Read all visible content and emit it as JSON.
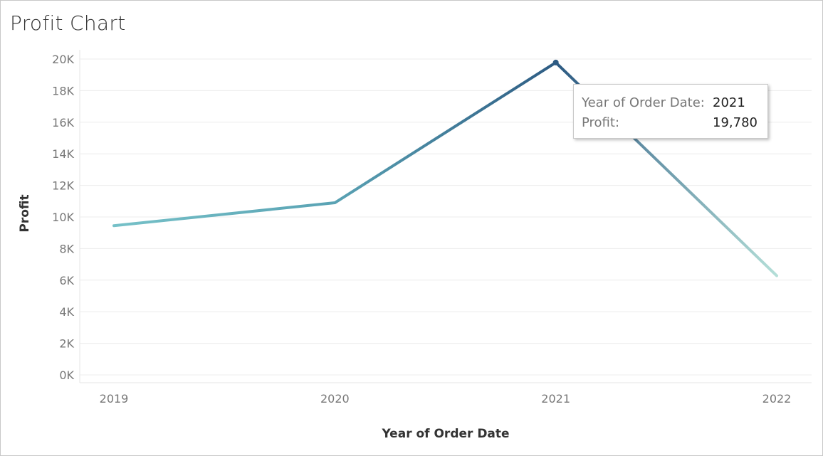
{
  "title": "Profit Chart",
  "colors": {
    "line_start": "#76c1c8",
    "line_mid": "#5aa3b4",
    "line_peak": "#2d5b83",
    "line_end": "#b4dfd8",
    "grid": "#ececec",
    "tick_text": "#777777",
    "axis_title": "#333333"
  },
  "chart_data": {
    "type": "line",
    "title": "Profit Chart",
    "xlabel": "Year of Order Date",
    "ylabel": "Profit",
    "categories": [
      "2019",
      "2020",
      "2021",
      "2022"
    ],
    "series": [
      {
        "values": [
          9450,
          10900,
          19780,
          6280
        ]
      }
    ],
    "ylim": [
      0,
      20000
    ],
    "yticks": [
      0,
      2000,
      4000,
      6000,
      8000,
      10000,
      12000,
      14000,
      16000,
      18000,
      20000
    ],
    "ytick_labels": [
      "0K",
      "2K",
      "4K",
      "6K",
      "8K",
      "10K",
      "12K",
      "14K",
      "16K",
      "18K",
      "20K"
    ],
    "grid": true,
    "legend": "none"
  },
  "tooltip": {
    "rows": [
      {
        "label": "Year of Order Date:",
        "value": "2021"
      },
      {
        "label": "Profit:",
        "value": "19,780"
      }
    ]
  }
}
